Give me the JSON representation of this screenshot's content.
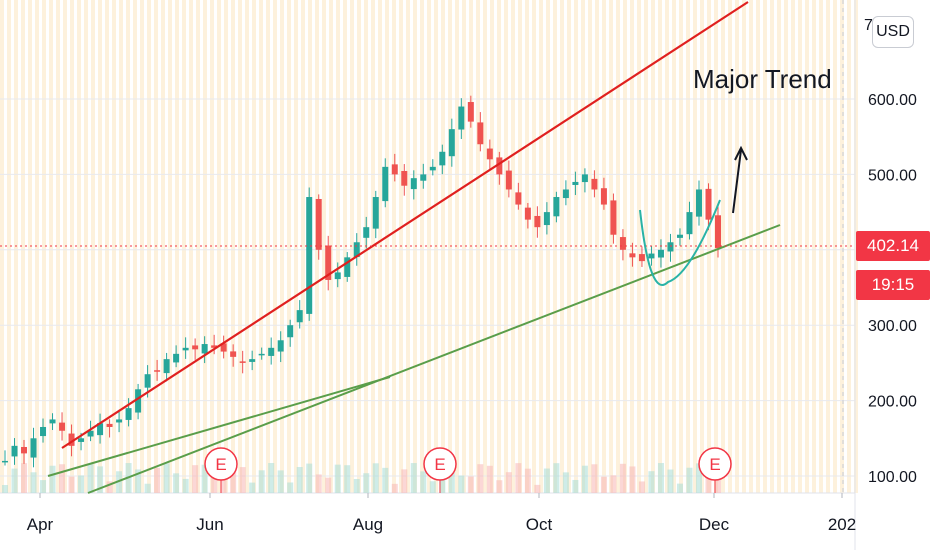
{
  "chart_data": {
    "type": "candlestick",
    "currency_button": "USD",
    "y_axis_ticks": [
      "600.00",
      "500.00",
      "400.00",
      "300.00",
      "200.00",
      "100.00"
    ],
    "y_axis_top_partial": "7",
    "x_axis_ticks": [
      "Apr",
      "Jun",
      "Aug",
      "Oct",
      "Dec",
      "202"
    ],
    "current_price_label": "402.14",
    "countdown_label": "19:15",
    "annotation_text": "Major Trend",
    "earnings_markers": [
      "E",
      "E",
      "E"
    ],
    "ylim": [
      90,
      720
    ],
    "series_closes_approx": [
      120,
      140,
      130,
      150,
      165,
      175,
      160,
      140,
      150,
      160,
      170,
      165,
      175,
      190,
      215,
      235,
      240,
      255,
      262,
      270,
      268,
      275,
      270,
      265,
      258,
      250,
      255,
      262,
      270,
      280,
      300,
      320,
      470,
      400,
      360,
      370,
      390,
      410,
      430,
      470,
      510,
      500,
      485,
      495,
      500,
      510,
      530,
      560,
      590,
      570,
      540,
      520,
      500,
      480,
      460,
      440,
      430,
      450,
      470,
      480,
      490,
      500,
      480,
      460,
      420,
      400,
      390,
      385,
      395,
      400,
      410,
      420,
      450,
      480,
      440,
      402.14
    ],
    "colors": {
      "up": "#26a69a",
      "down": "#ef5350",
      "red_trendline": "#e0201f",
      "green_trendline": "#5a9e4a",
      "price_tag": "#f23645",
      "background_stripes": "#fdf1dc"
    }
  }
}
